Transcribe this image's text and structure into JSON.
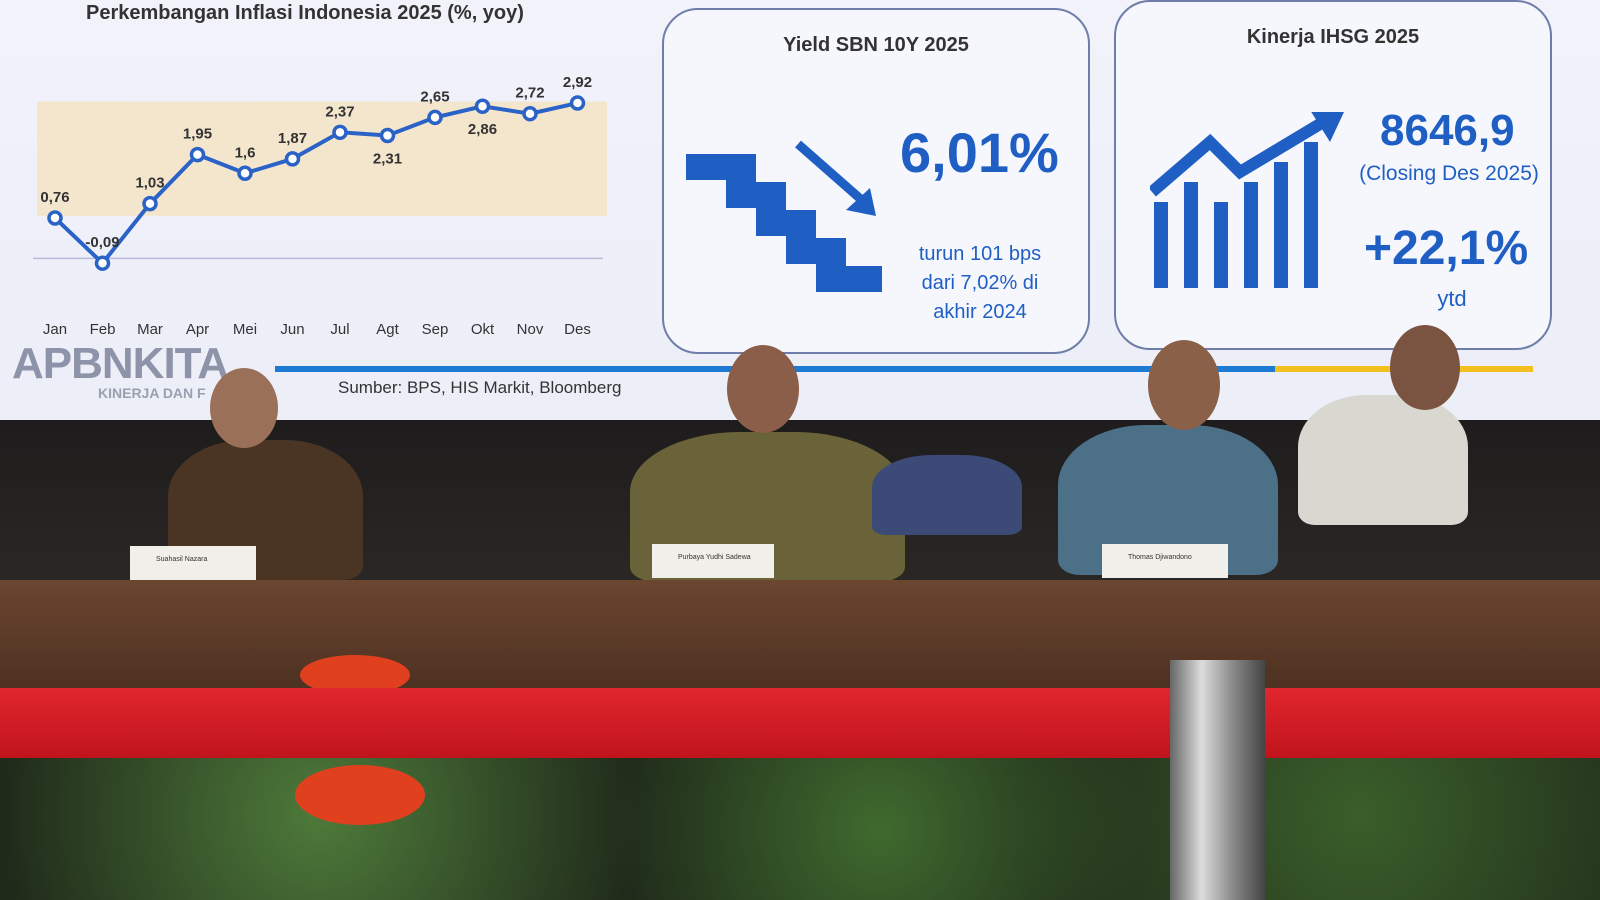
{
  "chart_data": {
    "type": "line",
    "title": "Perkembangan Inflasi Indonesia 2025 (%, yoy)",
    "categories": [
      "Jan",
      "Feb",
      "Mar",
      "Apr",
      "Mei",
      "Jun",
      "Jul",
      "Agt",
      "Sep",
      "Okt",
      "Nov",
      "Des"
    ],
    "values": [
      0.76,
      -0.09,
      1.03,
      1.95,
      1.6,
      1.87,
      2.37,
      2.31,
      2.65,
      2.86,
      2.72,
      2.92
    ],
    "data_labels": [
      "0,76",
      "-0,09",
      "1,03",
      "1,95",
      "1,6",
      "1,87",
      "2,37",
      "2,31",
      "2,65",
      "2,86",
      "2,72",
      "2,92"
    ],
    "shaded_band": [
      0.8,
      2.95
    ],
    "series_color": "#2a62c8",
    "band_color": "#f3e6cc",
    "grid": false
  },
  "source": "Sumber: BPS, HIS Markit, Bloomberg",
  "logo": {
    "text": "APBNKITA",
    "subtitle": "KINERJA DAN F"
  },
  "yield_card": {
    "title": "Yield SBN 10Y 2025",
    "value": "6,01%",
    "note": [
      "turun 101 bps",
      "dari 7,02% di",
      "akhir 2024"
    ],
    "icon": "stairs-down-arrow-icon"
  },
  "ihsg_card": {
    "title": "Kinerja IHSG 2025",
    "value": "8646,9",
    "closing": "(Closing Des 2025)",
    "change": "+22,1%",
    "change_label": "ytd",
    "icon": "bar-chart-up-arrow-icon"
  },
  "nameplates": [
    "Suahasil Nazara",
    "Purbaya Yudhi Sadewa",
    "Thomas Djiwandono"
  ],
  "accent": "#1f5fc4"
}
